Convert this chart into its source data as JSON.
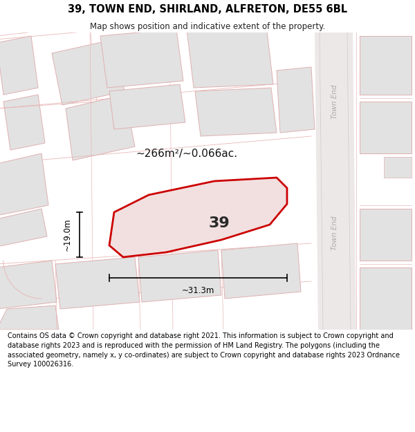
{
  "title": "39, TOWN END, SHIRLAND, ALFRETON, DE55 6BL",
  "subtitle": "Map shows position and indicative extent of the property.",
  "footer": "Contains OS data © Crown copyright and database right 2021. This information is subject to Crown copyright and database rights 2023 and is reproduced with the permission of HM Land Registry. The polygons (including the associated geometry, namely x, y co-ordinates) are subject to Crown copyright and database rights 2023 Ordnance Survey 100026316.",
  "map_bg": "#f7f2f2",
  "area_label": "~266m²/~0.066ac.",
  "number_label": "39",
  "width_label": "~31.3m",
  "height_label": "~19.0m",
  "street_label_upper": "Town End",
  "street_label_lower": "Town End",
  "highlight_color": "#cc0000",
  "highlight_fill": "#f2e0e0",
  "building_fill": "#e2e2e2",
  "building_stroke": "#e0b0b0",
  "parcel_stroke": "#e8b8b8",
  "road_fill": "#ede8e8",
  "road_stroke": "#d0c0c0"
}
